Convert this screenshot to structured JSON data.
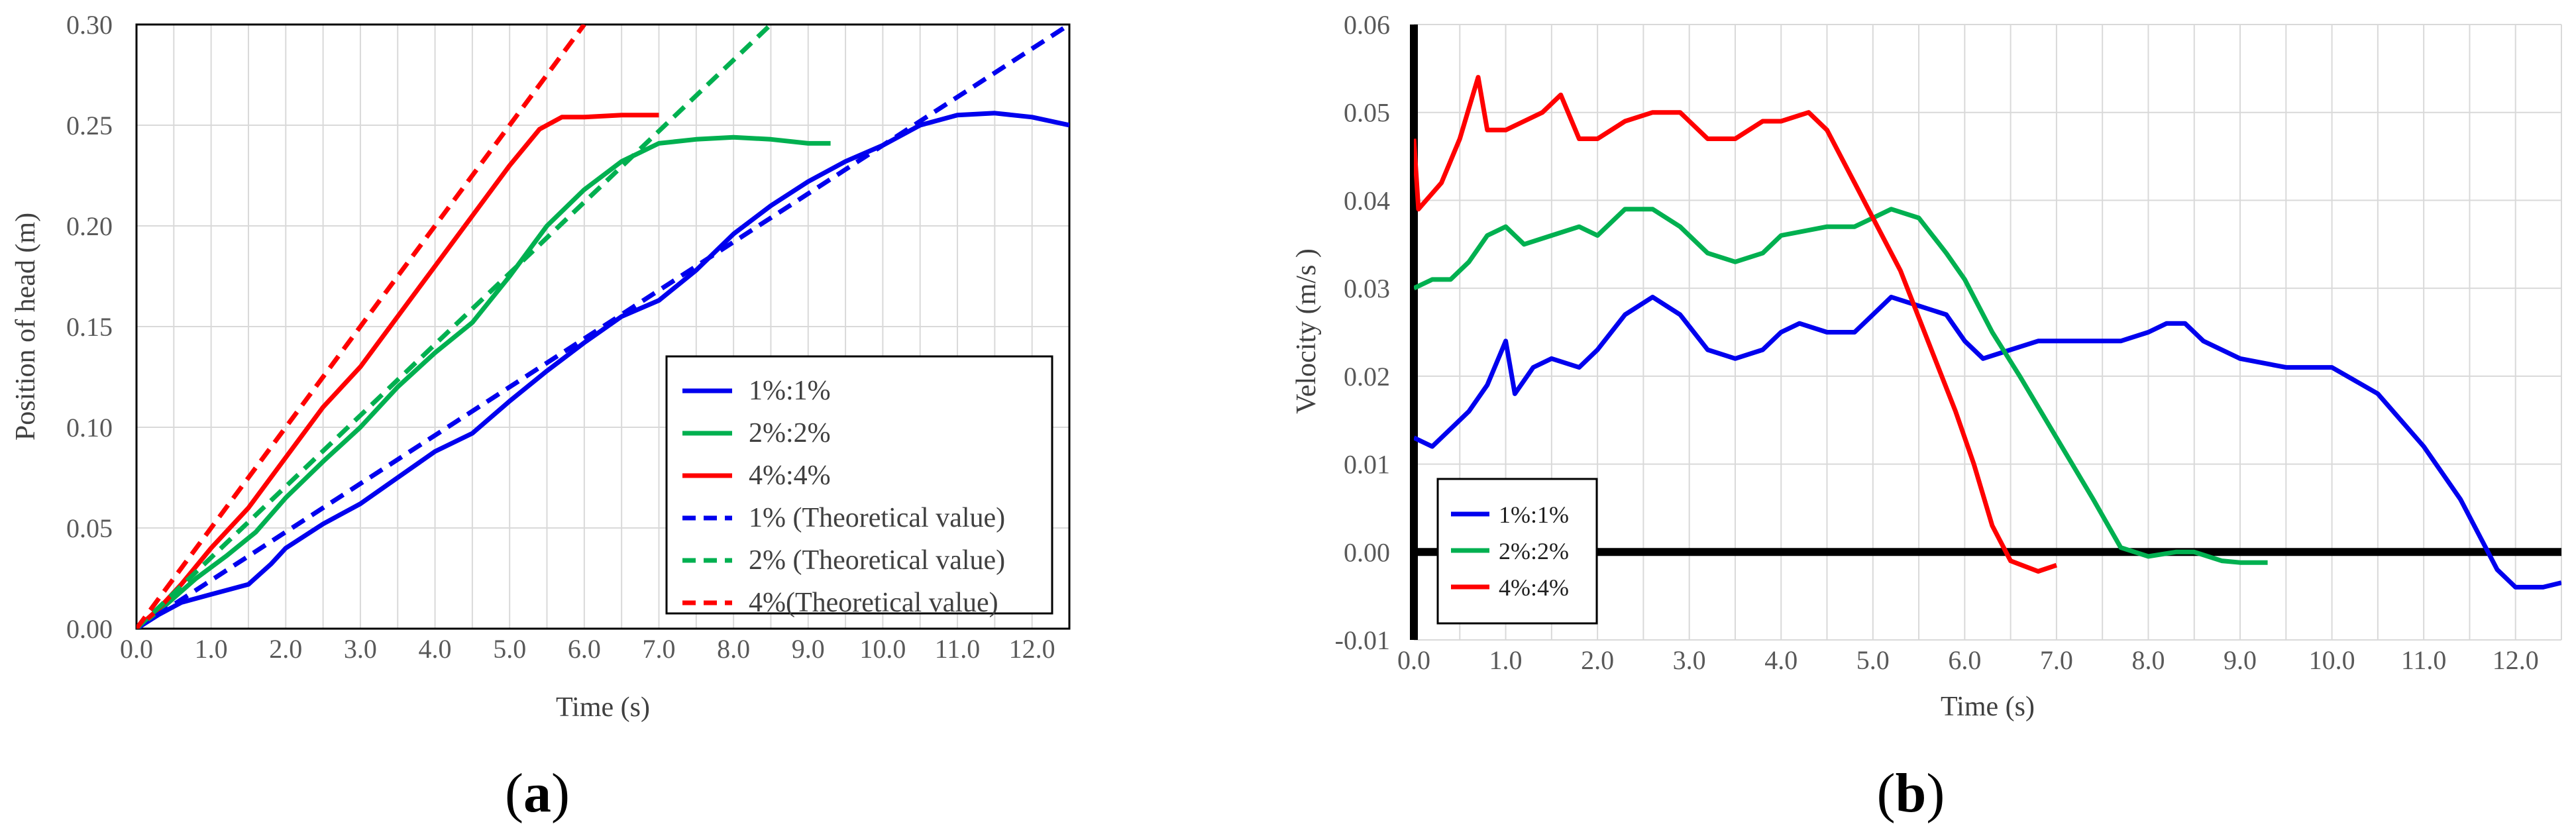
{
  "chart_data": [
    {
      "type": "line",
      "panel_label": "a",
      "xlabel": "Time (s)",
      "ylabel": "Position of head (m)",
      "xlim": [
        0,
        12.5
      ],
      "ylim": [
        0,
        0.3
      ],
      "x_ticks": [
        "0.0",
        "1.0",
        "2.0",
        "3.0",
        "4.0",
        "5.0",
        "6.0",
        "7.0",
        "8.0",
        "9.0",
        "10.0",
        "11.0",
        "12.0"
      ],
      "y_ticks": [
        "0.00",
        "0.05",
        "0.10",
        "0.15",
        "0.20",
        "0.25",
        "0.30"
      ],
      "grid": true,
      "legend_position": "bottom-right",
      "series": [
        {
          "name": "1%:1%",
          "color": "#0000ee",
          "dash": "solid",
          "points": [
            [
              0,
              0
            ],
            [
              0.3,
              0.007
            ],
            [
              0.6,
              0.013
            ],
            [
              1.0,
              0.017
            ],
            [
              1.5,
              0.022
            ],
            [
              1.8,
              0.032
            ],
            [
              2.0,
              0.04
            ],
            [
              2.5,
              0.052
            ],
            [
              3.0,
              0.062
            ],
            [
              3.5,
              0.075
            ],
            [
              4.0,
              0.088
            ],
            [
              4.5,
              0.097
            ],
            [
              5.0,
              0.113
            ],
            [
              5.5,
              0.128
            ],
            [
              6.0,
              0.142
            ],
            [
              6.5,
              0.155
            ],
            [
              7.0,
              0.163
            ],
            [
              7.5,
              0.178
            ],
            [
              8.0,
              0.196
            ],
            [
              8.5,
              0.21
            ],
            [
              9.0,
              0.222
            ],
            [
              9.5,
              0.232
            ],
            [
              10.0,
              0.24
            ],
            [
              10.5,
              0.25
            ],
            [
              11.0,
              0.255
            ],
            [
              11.5,
              0.256
            ],
            [
              12.0,
              0.254
            ],
            [
              12.5,
              0.25
            ]
          ]
        },
        {
          "name": "2%:2%",
          "color": "#00b050",
          "dash": "solid",
          "points": [
            [
              0,
              0
            ],
            [
              0.4,
              0.012
            ],
            [
              0.8,
              0.025
            ],
            [
              1.2,
              0.036
            ],
            [
              1.6,
              0.048
            ],
            [
              2.0,
              0.065
            ],
            [
              2.5,
              0.083
            ],
            [
              3.0,
              0.1
            ],
            [
              3.5,
              0.12
            ],
            [
              4.0,
              0.137
            ],
            [
              4.5,
              0.152
            ],
            [
              5.0,
              0.175
            ],
            [
              5.5,
              0.2
            ],
            [
              6.0,
              0.218
            ],
            [
              6.5,
              0.232
            ],
            [
              7.0,
              0.241
            ],
            [
              7.5,
              0.243
            ],
            [
              8.0,
              0.244
            ],
            [
              8.5,
              0.243
            ],
            [
              9.0,
              0.241
            ],
            [
              9.3,
              0.241
            ]
          ]
        },
        {
          "name": "4%:4%",
          "color": "#ff0000",
          "dash": "solid",
          "points": [
            [
              0,
              0
            ],
            [
              0.3,
              0.01
            ],
            [
              0.6,
              0.022
            ],
            [
              1.0,
              0.04
            ],
            [
              1.5,
              0.06
            ],
            [
              2.0,
              0.085
            ],
            [
              2.5,
              0.11
            ],
            [
              3.0,
              0.13
            ],
            [
              3.5,
              0.155
            ],
            [
              4.0,
              0.18
            ],
            [
              4.5,
              0.205
            ],
            [
              5.0,
              0.23
            ],
            [
              5.4,
              0.248
            ],
            [
              5.7,
              0.254
            ],
            [
              6.0,
              0.254
            ],
            [
              6.5,
              0.255
            ],
            [
              7.0,
              0.255
            ]
          ]
        },
        {
          "name": "1% (Theoretical value)",
          "color": "#0000ee",
          "dash": "dashed",
          "points": [
            [
              0,
              0
            ],
            [
              12.5,
              0.3
            ]
          ]
        },
        {
          "name": "2% (Theoretical value)",
          "color": "#00b050",
          "dash": "dashed",
          "points": [
            [
              0,
              0
            ],
            [
              8.5,
              0.3
            ]
          ]
        },
        {
          "name": "4%(Theoretical value)",
          "color": "#ff0000",
          "dash": "dashed",
          "points": [
            [
              0,
              0
            ],
            [
              6.0,
              0.3
            ]
          ]
        }
      ]
    },
    {
      "type": "line",
      "panel_label": "b",
      "xlabel": "Time (s)",
      "ylabel": "Velocity (m/s )",
      "xlim": [
        0,
        12.5
      ],
      "ylim": [
        -0.01,
        0.06
      ],
      "x_ticks": [
        "0.0",
        "1.0",
        "2.0",
        "3.0",
        "4.0",
        "5.0",
        "6.0",
        "7.0",
        "8.0",
        "9.0",
        "10.0",
        "11.0",
        "12.0"
      ],
      "y_ticks": [
        "-0.01",
        "0.00",
        "0.01",
        "0.02",
        "0.03",
        "0.04",
        "0.05",
        "0.06"
      ],
      "grid": true,
      "legend_position": "bottom-left",
      "series": [
        {
          "name": "1%:1%",
          "color": "#0000ee",
          "points": [
            [
              0,
              0.013
            ],
            [
              0.2,
              0.012
            ],
            [
              0.4,
              0.014
            ],
            [
              0.6,
              0.016
            ],
            [
              0.8,
              0.019
            ],
            [
              1.0,
              0.024
            ],
            [
              1.1,
              0.018
            ],
            [
              1.3,
              0.021
            ],
            [
              1.5,
              0.022
            ],
            [
              1.8,
              0.021
            ],
            [
              2.0,
              0.023
            ],
            [
              2.3,
              0.027
            ],
            [
              2.6,
              0.029
            ],
            [
              2.9,
              0.027
            ],
            [
              3.2,
              0.023
            ],
            [
              3.5,
              0.022
            ],
            [
              3.8,
              0.023
            ],
            [
              4.0,
              0.025
            ],
            [
              4.2,
              0.026
            ],
            [
              4.5,
              0.025
            ],
            [
              4.8,
              0.025
            ],
            [
              5.0,
              0.027
            ],
            [
              5.2,
              0.029
            ],
            [
              5.5,
              0.028
            ],
            [
              5.8,
              0.027
            ],
            [
              6.0,
              0.024
            ],
            [
              6.2,
              0.022
            ],
            [
              6.5,
              0.023
            ],
            [
              6.8,
              0.024
            ],
            [
              7.0,
              0.024
            ],
            [
              7.4,
              0.024
            ],
            [
              7.7,
              0.024
            ],
            [
              8.0,
              0.025
            ],
            [
              8.2,
              0.026
            ],
            [
              8.4,
              0.026
            ],
            [
              8.6,
              0.024
            ],
            [
              9.0,
              0.022
            ],
            [
              9.5,
              0.021
            ],
            [
              10.0,
              0.021
            ],
            [
              10.5,
              0.018
            ],
            [
              11.0,
              0.012
            ],
            [
              11.4,
              0.006
            ],
            [
              11.6,
              0.002
            ],
            [
              11.8,
              -0.002
            ],
            [
              12.0,
              -0.004
            ],
            [
              12.3,
              -0.004
            ],
            [
              12.5,
              -0.0035
            ]
          ]
        },
        {
          "name": "2%:2%",
          "color": "#00b050",
          "points": [
            [
              0,
              0.03
            ],
            [
              0.2,
              0.031
            ],
            [
              0.4,
              0.031
            ],
            [
              0.6,
              0.033
            ],
            [
              0.8,
              0.036
            ],
            [
              1.0,
              0.037
            ],
            [
              1.2,
              0.035
            ],
            [
              1.5,
              0.036
            ],
            [
              1.8,
              0.037
            ],
            [
              2.0,
              0.036
            ],
            [
              2.3,
              0.039
            ],
            [
              2.6,
              0.039
            ],
            [
              2.9,
              0.037
            ],
            [
              3.2,
              0.034
            ],
            [
              3.5,
              0.033
            ],
            [
              3.8,
              0.034
            ],
            [
              4.0,
              0.036
            ],
            [
              4.5,
              0.037
            ],
            [
              4.8,
              0.037
            ],
            [
              5.0,
              0.038
            ],
            [
              5.2,
              0.039
            ],
            [
              5.5,
              0.038
            ],
            [
              5.8,
              0.034
            ],
            [
              6.0,
              0.031
            ],
            [
              6.3,
              0.025
            ],
            [
              6.6,
              0.02
            ],
            [
              7.0,
              0.013
            ],
            [
              7.4,
              0.006
            ],
            [
              7.7,
              0.0005
            ],
            [
              8.0,
              -0.0005
            ],
            [
              8.3,
              0.0
            ],
            [
              8.5,
              0.0
            ],
            [
              8.8,
              -0.001
            ],
            [
              9.0,
              -0.0012
            ],
            [
              9.3,
              -0.0012
            ]
          ]
        },
        {
          "name": "4%:4%",
          "color": "#ff0000",
          "points": [
            [
              0,
              0.047
            ],
            [
              0.05,
              0.039
            ],
            [
              0.3,
              0.042
            ],
            [
              0.5,
              0.047
            ],
            [
              0.7,
              0.054
            ],
            [
              0.8,
              0.048
            ],
            [
              1.0,
              0.048
            ],
            [
              1.2,
              0.049
            ],
            [
              1.4,
              0.05
            ],
            [
              1.6,
              0.052
            ],
            [
              1.8,
              0.047
            ],
            [
              2.0,
              0.047
            ],
            [
              2.3,
              0.049
            ],
            [
              2.6,
              0.05
            ],
            [
              2.9,
              0.05
            ],
            [
              3.2,
              0.047
            ],
            [
              3.5,
              0.047
            ],
            [
              3.8,
              0.049
            ],
            [
              4.0,
              0.049
            ],
            [
              4.3,
              0.05
            ],
            [
              4.5,
              0.048
            ],
            [
              4.8,
              0.042
            ],
            [
              5.0,
              0.038
            ],
            [
              5.3,
              0.032
            ],
            [
              5.6,
              0.024
            ],
            [
              5.9,
              0.016
            ],
            [
              6.1,
              0.01
            ],
            [
              6.3,
              0.003
            ],
            [
              6.5,
              -0.001
            ],
            [
              6.8,
              -0.0022
            ],
            [
              7.0,
              -0.0015
            ]
          ]
        }
      ]
    }
  ]
}
